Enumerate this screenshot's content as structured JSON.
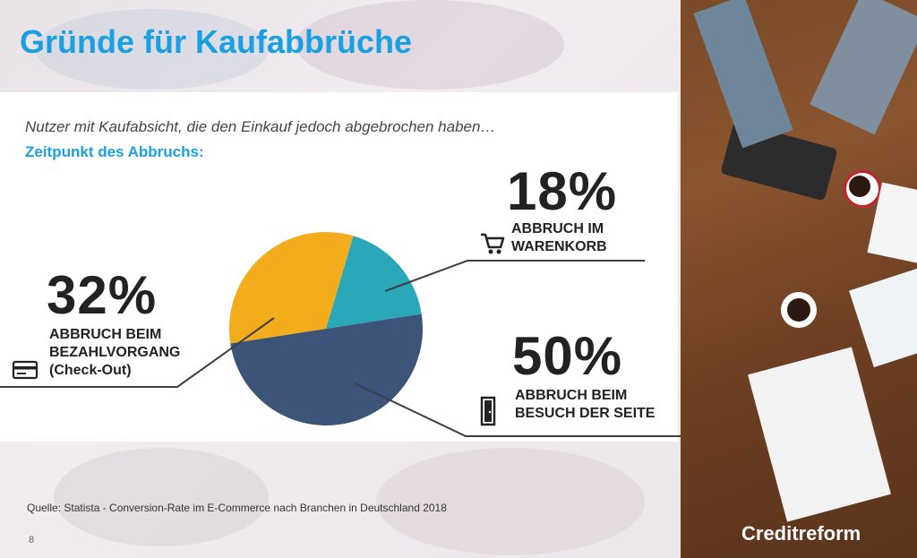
{
  "slide": {
    "title": "Gründe für Kaufabbrüche",
    "subtitle": "Nutzer mit Kaufabsicht, die den Einkauf jedoch abgebrochen haben…",
    "subheading": "Zeitpunkt des Abbruchs:",
    "source": "Quelle: Statista - Conversion-Rate im E-Commerce nach Branchen in Deutschland 2018",
    "page_number": "8",
    "logo": "Creditreform"
  },
  "chart_data": {
    "type": "pie",
    "categories": [
      "Abbruch im Warenkorb",
      "Abbruch beim Besuch der Seite",
      "Abbruch beim Bezahlvorgang (Check-Out)"
    ],
    "values": [
      18,
      50,
      32
    ],
    "colors": [
      "#2ba8b8",
      "#3c5478",
      "#f2ac1c"
    ],
    "labels": [
      {
        "pct": "18%",
        "line1": "ABBRUCH IM",
        "line2": "WARENKORB",
        "icon": "shopping-cart-icon"
      },
      {
        "pct": "50%",
        "line1": "ABBRUCH BEIM",
        "line2": "BESUCH DER SEITE",
        "icon": "door-icon"
      },
      {
        "pct": "32%",
        "line1": "ABBRUCH BEIM",
        "line2": "BEZAHLVORGANG",
        "line3": "(Check-Out)",
        "icon": "credit-card-icon"
      }
    ]
  }
}
